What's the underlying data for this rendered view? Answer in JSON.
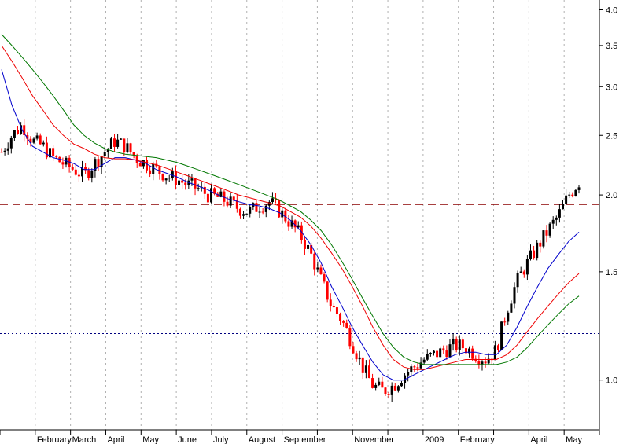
{
  "chart_data": {
    "type": "candlestick",
    "y_scale": "log",
    "ylim": [
      0.83,
      4.15
    ],
    "y_ticks": [
      {
        "value": 1.0,
        "label": "1.0"
      },
      {
        "value": 1.5,
        "label": "1.5"
      },
      {
        "value": 2.0,
        "label": "2.0"
      },
      {
        "value": 2.5,
        "label": "2.5"
      },
      {
        "value": 3.0,
        "label": "3.0"
      },
      {
        "value": 3.5,
        "label": "3.5"
      },
      {
        "value": 4.0,
        "label": "4.0"
      }
    ],
    "x_tick_labels": [
      "February",
      "March",
      "April",
      "May",
      "June",
      "July",
      "August",
      "September",
      "November",
      "2009",
      "February",
      "April",
      "May"
    ],
    "x_month_index": [
      1,
      2,
      3,
      4,
      5,
      6,
      7,
      8,
      10,
      12,
      13,
      15,
      16
    ],
    "month_count": 17,
    "grid": true,
    "reference_lines": [
      {
        "value": 2.1,
        "color": "#0000cc",
        "style": "solid"
      },
      {
        "value": 1.93,
        "color": "#8b0000",
        "style": "dashed"
      },
      {
        "value": 1.19,
        "color": "#000080",
        "style": "dotted"
      }
    ],
    "price_close": [
      2.35,
      2.5,
      2.6,
      2.45,
      2.4,
      2.3,
      2.25,
      2.2,
      2.15,
      2.25,
      2.35,
      2.45,
      2.4,
      2.3,
      2.25,
      2.2,
      2.15,
      2.12,
      2.08,
      2.05,
      2.0,
      1.98,
      1.95,
      1.9,
      1.88,
      1.92,
      1.95,
      1.88,
      1.8,
      1.72,
      1.6,
      1.45,
      1.32,
      1.25,
      1.15,
      1.05,
      0.98,
      0.96,
      0.98,
      1.02,
      1.05,
      1.08,
      1.1,
      1.12,
      1.14,
      1.13,
      1.1,
      1.08,
      1.12,
      1.3,
      1.45,
      1.55,
      1.65,
      1.75,
      1.85,
      2.0,
      2.1
    ],
    "ma_blue": [
      3.2,
      2.8,
      2.55,
      2.4,
      2.35,
      2.3,
      2.28,
      2.25,
      2.2,
      2.2,
      2.25,
      2.3,
      2.3,
      2.28,
      2.25,
      2.2,
      2.17,
      2.14,
      2.1,
      2.07,
      2.04,
      2.0,
      1.97,
      1.95,
      1.93,
      1.92,
      1.9,
      1.87,
      1.82,
      1.75,
      1.66,
      1.55,
      1.42,
      1.32,
      1.22,
      1.14,
      1.07,
      1.02,
      1.0,
      1.0,
      1.02,
      1.04,
      1.06,
      1.08,
      1.1,
      1.11,
      1.11,
      1.1,
      1.1,
      1.14,
      1.22,
      1.32,
      1.42,
      1.52,
      1.6,
      1.68,
      1.74
    ],
    "ma_red": [
      3.5,
      3.3,
      3.1,
      2.9,
      2.75,
      2.6,
      2.5,
      2.42,
      2.38,
      2.33,
      2.3,
      2.29,
      2.29,
      2.28,
      2.26,
      2.24,
      2.21,
      2.18,
      2.15,
      2.12,
      2.09,
      2.06,
      2.03,
      2.0,
      1.98,
      1.96,
      1.94,
      1.92,
      1.88,
      1.84,
      1.78,
      1.7,
      1.61,
      1.52,
      1.42,
      1.32,
      1.22,
      1.14,
      1.08,
      1.05,
      1.04,
      1.04,
      1.05,
      1.06,
      1.07,
      1.08,
      1.08,
      1.08,
      1.08,
      1.1,
      1.14,
      1.2,
      1.26,
      1.32,
      1.38,
      1.44,
      1.49
    ],
    "ma_green": [
      3.65,
      3.5,
      3.35,
      3.2,
      3.05,
      2.9,
      2.75,
      2.6,
      2.5,
      2.43,
      2.38,
      2.35,
      2.33,
      2.32,
      2.31,
      2.3,
      2.28,
      2.26,
      2.23,
      2.2,
      2.17,
      2.14,
      2.11,
      2.08,
      2.05,
      2.02,
      1.99,
      1.96,
      1.92,
      1.88,
      1.82,
      1.75,
      1.66,
      1.56,
      1.46,
      1.36,
      1.27,
      1.19,
      1.13,
      1.09,
      1.07,
      1.06,
      1.06,
      1.06,
      1.06,
      1.06,
      1.06,
      1.06,
      1.06,
      1.07,
      1.09,
      1.13,
      1.18,
      1.23,
      1.28,
      1.33,
      1.37
    ],
    "colors": {
      "up": "#000000",
      "down": "#ff0000",
      "ma_blue": "#0000cc",
      "ma_red": "#ee0000",
      "ma_green": "#007700",
      "grid": "#b0b0b0"
    }
  }
}
